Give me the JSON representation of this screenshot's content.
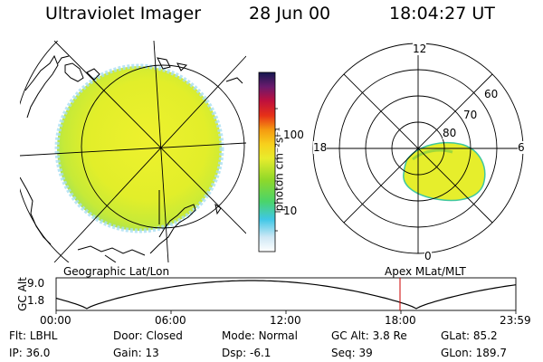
{
  "header": {
    "instrument": "Ultraviolet Imager",
    "date": "28 Jun 00",
    "time": "18:04:27 UT"
  },
  "colorbar": {
    "unit_label": "photon cm⁻²s⁻¹",
    "ticks": [
      "100",
      "10"
    ]
  },
  "polar_plot": {
    "mlt_labels": [
      "12",
      "18",
      "6",
      "0"
    ],
    "lat_labels": [
      "60",
      "70",
      "80"
    ]
  },
  "panel_labels": {
    "left": "Geographic Lat/Lon",
    "right": "Apex MLat/MLT"
  },
  "altitude_plot": {
    "ylabel": "GC Alt",
    "ticks": [
      "9.0",
      "1.8"
    ],
    "time_ticks": [
      "00:00",
      "06:00",
      "12:00",
      "18:00",
      "23:59"
    ],
    "current_time_marker": "18:04",
    "marker_color": "#cc0000"
  },
  "status": {
    "row1": [
      {
        "label": "Flt:",
        "value": "LBHL"
      },
      {
        "label": "Door:",
        "value": "Closed"
      },
      {
        "label": "Mode:",
        "value": "Normal"
      },
      {
        "label": "GC Alt:",
        "value": "3.8 Re"
      },
      {
        "label": "GLat:",
        "value": "85.2"
      }
    ],
    "row2": [
      {
        "label": "IP:",
        "value": "36.0"
      },
      {
        "label": "Gain:",
        "value": "13"
      },
      {
        "label": "Dsp:",
        "value": "-6.1"
      },
      {
        "label": "Seq:",
        "value": "39"
      },
      {
        "label": "GLon:",
        "value": "189.7"
      }
    ]
  },
  "colors": {
    "auroral_fill": "#e6ee2c",
    "background": "#ffffff"
  }
}
